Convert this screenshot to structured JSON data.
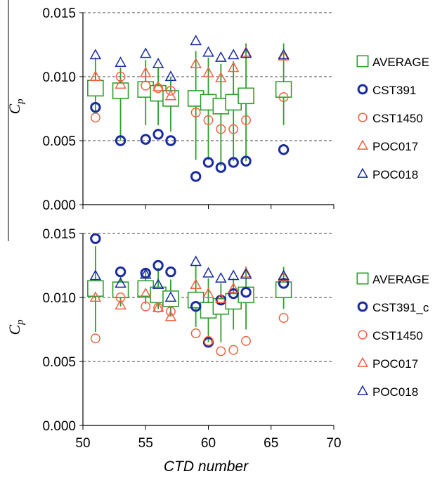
{
  "chart_data": [
    {
      "type": "scatter",
      "panel": "top",
      "ylabel": "C",
      "ylabel_sub": "p",
      "xlabel": "",
      "xlim": [
        50,
        70
      ],
      "ylim": [
        0,
        0.015
      ],
      "yticks": [
        "0.000",
        "0.005",
        "0.010",
        "0.015"
      ],
      "grid_y": [
        0.005,
        0.01,
        0.015
      ],
      "legend": {
        "placement": "right"
      },
      "series": [
        {
          "name": "AVERAGE",
          "marker": "square",
          "color": "#2e9e2e",
          "x": [
            51,
            53,
            55,
            56,
            57,
            59,
            60,
            61,
            62,
            63,
            66
          ],
          "y": [
            0.0091,
            0.0089,
            0.009,
            0.0087,
            0.0083,
            0.0083,
            0.008,
            0.0077,
            0.008,
            0.0085,
            0.009
          ],
          "err_low": [
            0.0073,
            0.005,
            0.0062,
            0.0062,
            0.0057,
            0.0035,
            0.0035,
            0.003,
            0.0034,
            0.0034,
            0.0062
          ],
          "err_high": [
            0.0115,
            0.0107,
            0.0113,
            0.0107,
            0.01,
            0.012,
            0.0115,
            0.011,
            0.0112,
            0.0126,
            0.0126
          ]
        },
        {
          "name": "CST391",
          "marker": "circle",
          "color": "#1a2c9e",
          "x": [
            51,
            53,
            55,
            56,
            57,
            59,
            60,
            61,
            62,
            63,
            66
          ],
          "y": [
            0.0076,
            0.005,
            0.0051,
            0.0055,
            0.005,
            0.0022,
            0.0033,
            0.0029,
            0.0033,
            0.0034,
            0.0043
          ]
        },
        {
          "name": "CST1450",
          "marker": "circle",
          "color": "#f06040",
          "x": [
            51,
            53,
            55,
            56,
            57,
            59,
            60,
            61,
            62,
            63,
            66
          ],
          "y": [
            0.0068,
            0.01,
            0.0093,
            0.0091,
            0.0089,
            0.0072,
            0.0066,
            0.0059,
            0.0059,
            0.0066,
            0.0084
          ]
        },
        {
          "name": "POC017",
          "marker": "triangle",
          "color": "#f06040",
          "x": [
            51,
            53,
            55,
            56,
            57,
            59,
            60,
            61,
            62,
            63,
            66
          ],
          "y": [
            0.01,
            0.0094,
            0.0103,
            0.0092,
            0.0085,
            0.011,
            0.0103,
            0.0099,
            0.0107,
            0.0119,
            0.0116
          ]
        },
        {
          "name": "POC018",
          "marker": "triangle",
          "color": "#1a2c9e",
          "x": [
            51,
            53,
            55,
            56,
            57,
            59,
            60,
            61,
            62,
            63,
            66
          ],
          "y": [
            0.0117,
            0.0111,
            0.0118,
            0.011,
            0.01,
            0.0128,
            0.0119,
            0.0115,
            0.0117,
            0.0118,
            0.0117
          ]
        }
      ]
    },
    {
      "type": "scatter",
      "panel": "bottom",
      "ylabel": "C",
      "ylabel_sub": "p",
      "xlabel": "CTD number",
      "xlim": [
        50,
        70
      ],
      "xticks": [
        "50",
        "55",
        "60",
        "65",
        "70"
      ],
      "ylim": [
        0,
        0.015
      ],
      "yticks": [
        "0.000",
        "0.005",
        "0.010",
        "0.015"
      ],
      "grid_y": [
        0.005,
        0.01,
        0.015
      ],
      "legend": {
        "placement": "right"
      },
      "series": [
        {
          "name": "AVERAGE",
          "marker": "square",
          "color": "#2e9e2e",
          "x": [
            51,
            53,
            55,
            56,
            57,
            59,
            60,
            61,
            62,
            63,
            66
          ],
          "y": [
            0.0107,
            0.0106,
            0.0107,
            0.0102,
            0.0099,
            0.0098,
            0.009,
            0.0093,
            0.0097,
            0.0102,
            0.0106
          ],
          "err_low": [
            0.0073,
            0.0093,
            0.0095,
            0.0091,
            0.0086,
            0.0077,
            0.0065,
            0.0065,
            0.0075,
            0.0075,
            0.0091
          ],
          "err_high": [
            0.014,
            0.0117,
            0.0122,
            0.0123,
            0.0114,
            0.0125,
            0.0115,
            0.0111,
            0.0115,
            0.0124,
            0.0124
          ]
        },
        {
          "name": "CST391_c",
          "marker": "circle",
          "color": "#1a2c9e",
          "x": [
            51,
            53,
            55,
            56,
            57,
            59,
            60,
            61,
            62,
            63,
            66
          ],
          "y": [
            0.0146,
            0.012,
            0.0119,
            0.0125,
            0.012,
            0.0093,
            0.0065,
            0.0098,
            0.0103,
            0.0104,
            0.0111
          ]
        },
        {
          "name": "CST1450",
          "marker": "circle",
          "color": "#f06040",
          "x": [
            51,
            53,
            55,
            56,
            57,
            59,
            60,
            61,
            62,
            63,
            66
          ],
          "y": [
            0.0068,
            0.01,
            0.0093,
            0.0092,
            0.0089,
            0.0072,
            0.0066,
            0.0058,
            0.0059,
            0.0066,
            0.0084
          ]
        },
        {
          "name": "POC017",
          "marker": "triangle",
          "color": "#f06040",
          "x": [
            51,
            53,
            55,
            56,
            57,
            59,
            60,
            61,
            62,
            63,
            66
          ],
          "y": [
            0.01,
            0.0094,
            0.0103,
            0.0092,
            0.0085,
            0.011,
            0.0103,
            0.0099,
            0.0107,
            0.0119,
            0.0116
          ]
        },
        {
          "name": "POC018",
          "marker": "triangle",
          "color": "#1a2c9e",
          "x": [
            51,
            53,
            55,
            56,
            57,
            59,
            60,
            61,
            62,
            63,
            66
          ],
          "y": [
            0.0117,
            0.0111,
            0.0118,
            0.011,
            0.01,
            0.0128,
            0.0119,
            0.0115,
            0.0117,
            0.0118,
            0.0117
          ]
        }
      ]
    }
  ]
}
